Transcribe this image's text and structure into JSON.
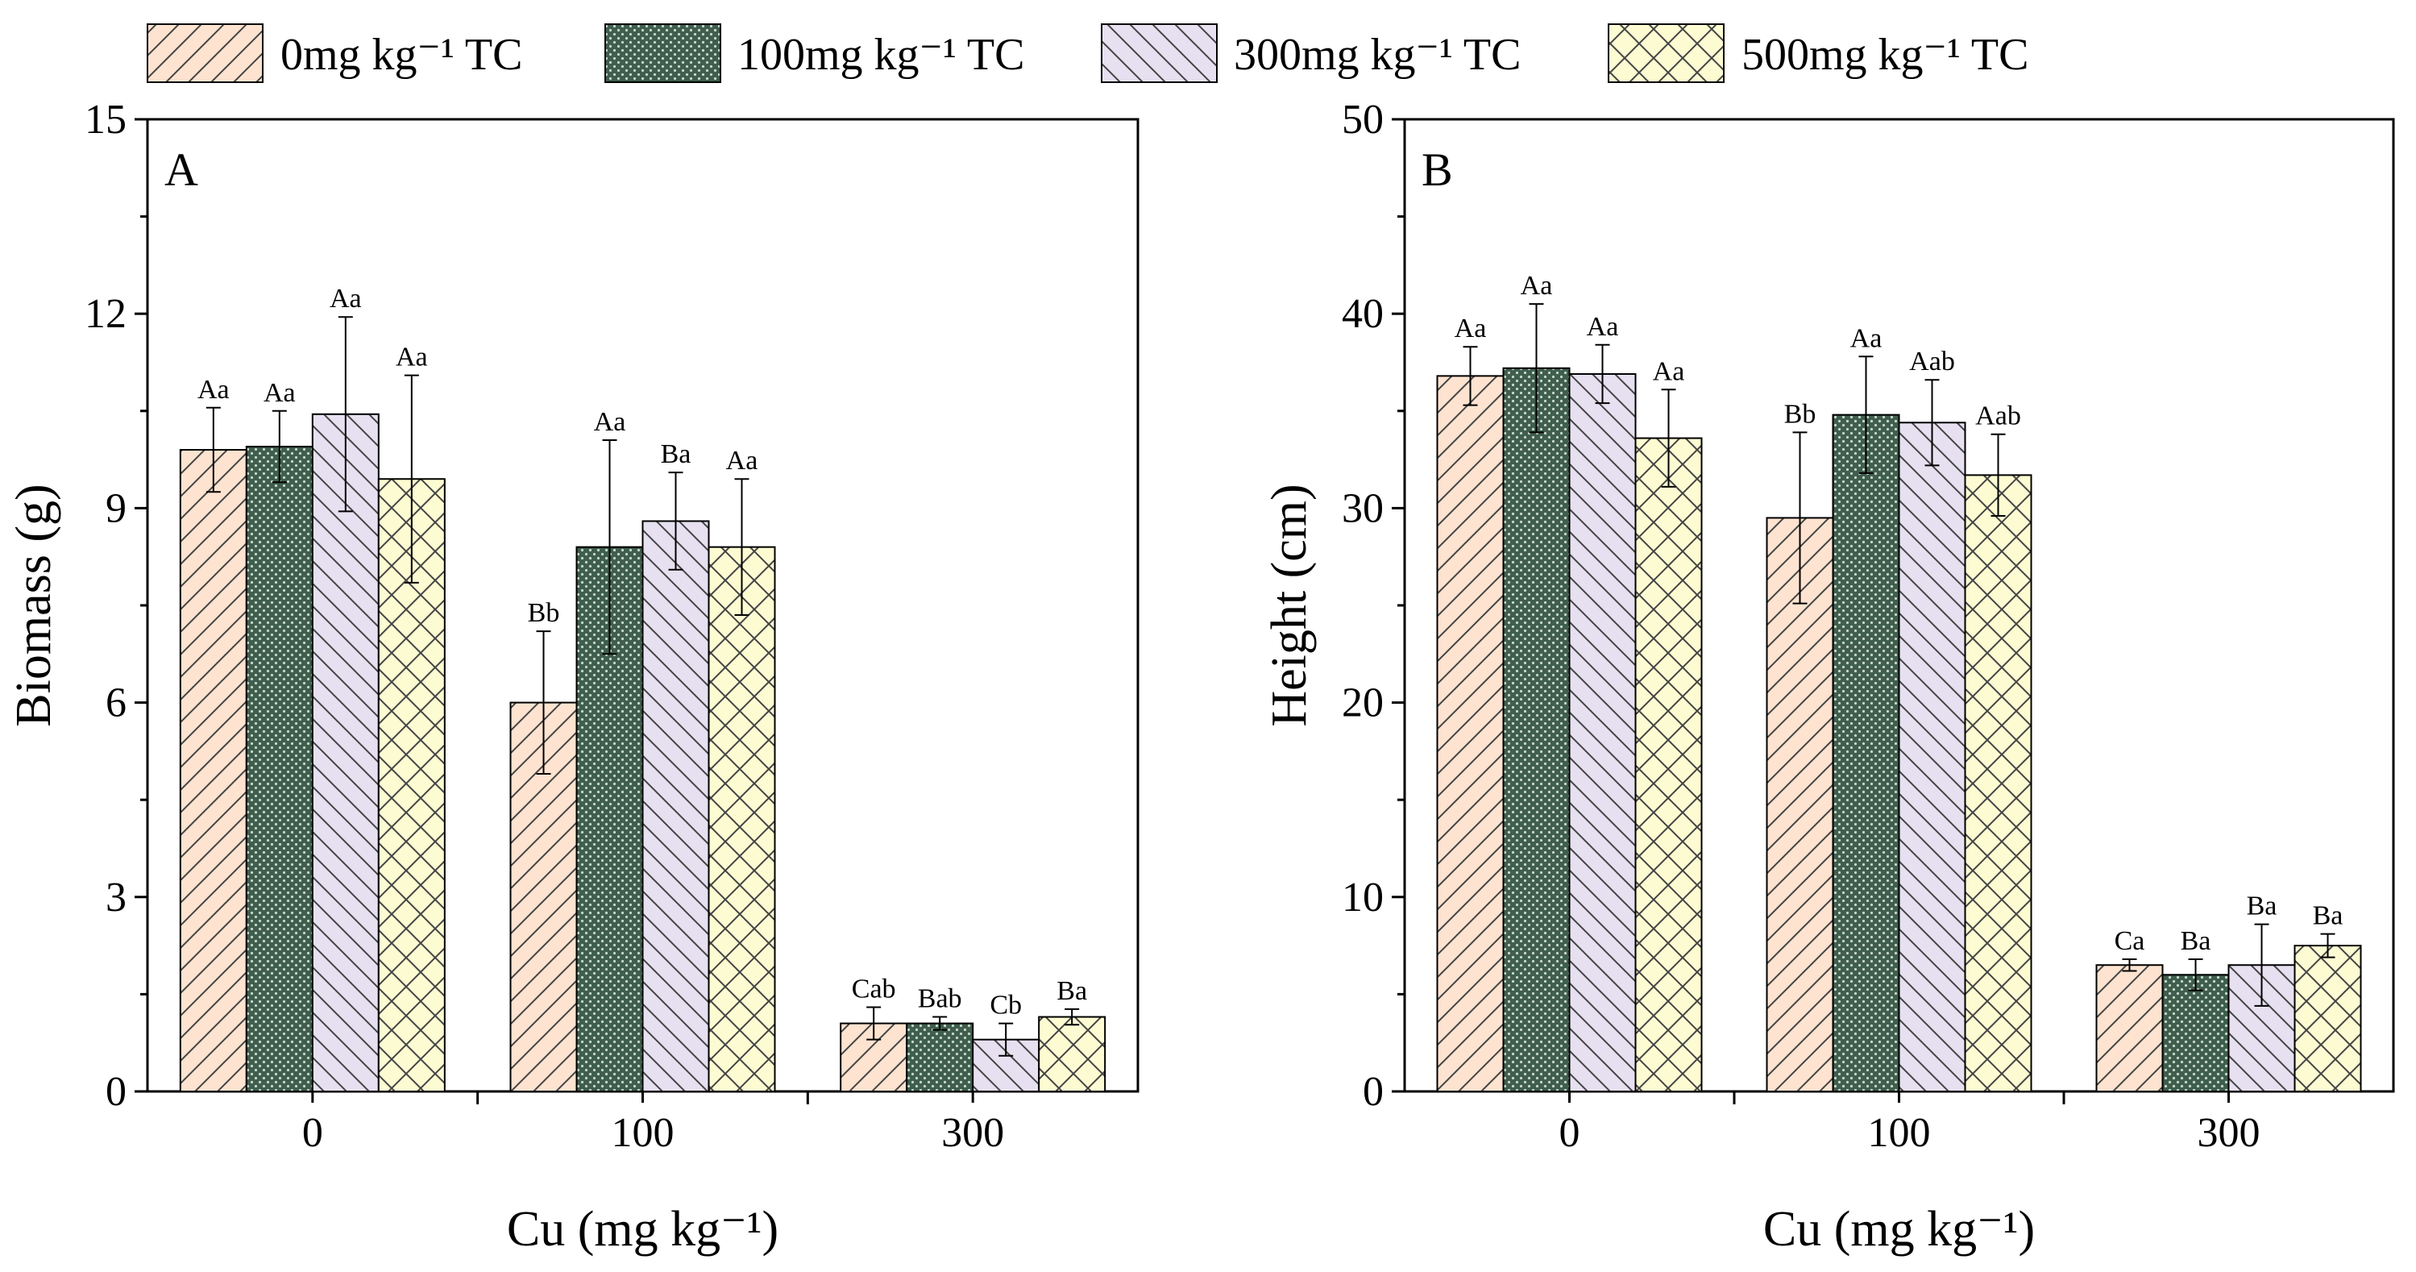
{
  "legend": [
    "0mg kg⁻¹ TC",
    "100mg kg⁻¹ TC",
    "300mg kg⁻¹ TC",
    "500mg kg⁻¹ TC"
  ],
  "series_styles": [
    {
      "fill": "#fde3d0",
      "pattern": "diag-forward",
      "pattern_color": "#444444"
    },
    {
      "fill": "#3f5e4d",
      "pattern": "dots",
      "pattern_color": "#c9d6cc"
    },
    {
      "fill": "#e6e0f0",
      "pattern": "diag-back",
      "pattern_color": "#444444"
    },
    {
      "fill": "#fdfbd2",
      "pattern": "crosshatch",
      "pattern_color": "#444444"
    }
  ],
  "chart_data": [
    {
      "type": "bar",
      "panel_label": "A",
      "title": "",
      "xlabel": "Cu (mg kg⁻¹)",
      "ylabel": "Biomass (g)",
      "categories": [
        "0",
        "100",
        "300"
      ],
      "ylim": [
        0,
        15
      ],
      "yticks": [
        "0",
        "3",
        "6",
        "9",
        "12",
        "15"
      ],
      "series": [
        {
          "name": "0mg kg⁻¹ TC",
          "values": [
            9.9,
            6.0,
            1.05
          ],
          "errors": [
            0.65,
            1.1,
            0.25
          ],
          "labels": [
            "Aa",
            "Bb",
            "Cab"
          ]
        },
        {
          "name": "100mg kg⁻¹ TC",
          "values": [
            9.95,
            8.4,
            1.05
          ],
          "errors": [
            0.55,
            1.65,
            0.1
          ],
          "labels": [
            "Aa",
            "Aa",
            "Bab"
          ]
        },
        {
          "name": "300mg kg⁻¹ TC",
          "values": [
            10.45,
            8.8,
            0.8
          ],
          "errors": [
            1.5,
            0.75,
            0.25
          ],
          "labels": [
            "Aa",
            "Ba",
            "Cb"
          ]
        },
        {
          "name": "500mg kg⁻¹ TC",
          "values": [
            9.45,
            8.4,
            1.15
          ],
          "errors": [
            1.6,
            1.05,
            0.12
          ],
          "labels": [
            "Aa",
            "Aa",
            "Ba"
          ]
        }
      ]
    },
    {
      "type": "bar",
      "panel_label": "B",
      "title": "",
      "xlabel": "Cu (mg kg⁻¹)",
      "ylabel": "Height (cm)",
      "categories": [
        "0",
        "100",
        "300"
      ],
      "ylim": [
        0,
        50
      ],
      "yticks": [
        "0",
        "10",
        "20",
        "30",
        "40",
        "50"
      ],
      "series": [
        {
          "name": "0mg kg⁻¹ TC",
          "values": [
            36.8,
            29.5,
            6.5
          ],
          "errors": [
            1.5,
            4.4,
            0.3
          ],
          "labels": [
            "Aa",
            "Bb",
            "Ca"
          ]
        },
        {
          "name": "100mg kg⁻¹ TC",
          "values": [
            37.2,
            34.8,
            6.0
          ],
          "errors": [
            3.3,
            3.0,
            0.8
          ],
          "labels": [
            "Aa",
            "Aa",
            "Ba"
          ]
        },
        {
          "name": "300mg kg⁻¹ TC",
          "values": [
            36.9,
            34.4,
            6.5
          ],
          "errors": [
            1.5,
            2.2,
            2.1
          ],
          "labels": [
            "Aa",
            "Aab",
            "Ba"
          ]
        },
        {
          "name": "500mg kg⁻¹ TC",
          "values": [
            33.6,
            31.7,
            7.5
          ],
          "errors": [
            2.5,
            2.1,
            0.6
          ],
          "labels": [
            "Aa",
            "Aab",
            "Ba"
          ]
        }
      ]
    }
  ]
}
